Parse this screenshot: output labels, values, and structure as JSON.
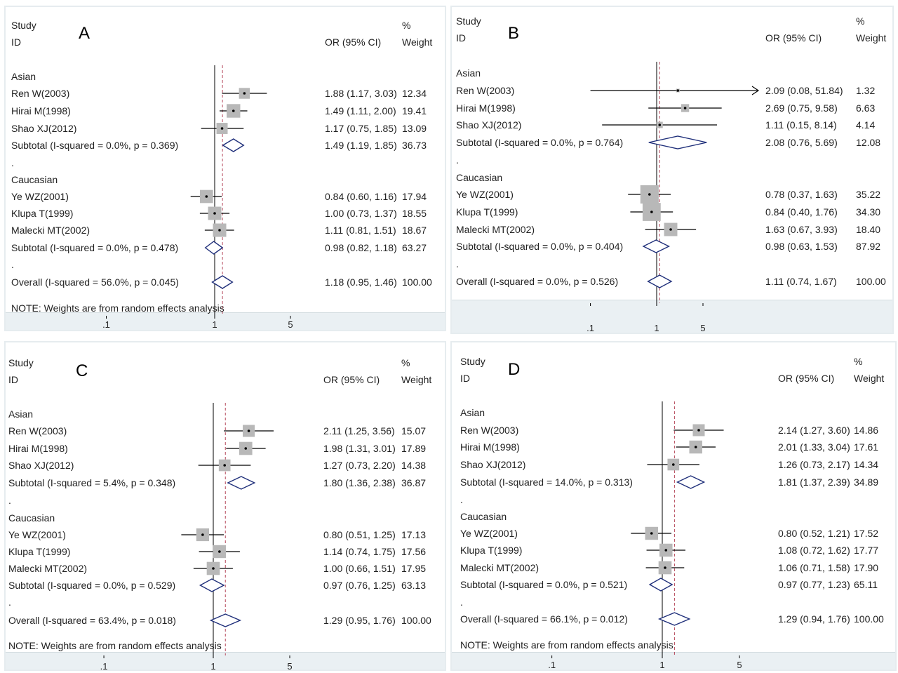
{
  "chart_data": [
    {
      "type": "forest",
      "panel": "A",
      "header": {
        "study": "Study",
        "id": "ID",
        "or": "OR (95% CI)",
        "pct": "%",
        "weight": "Weight"
      },
      "x_scale": "log",
      "xlim": [
        0.1,
        5
      ],
      "x_ticks": [
        ".1",
        "1",
        "5"
      ],
      "rows": [
        {
          "kind": "group",
          "label": "Asian"
        },
        {
          "kind": "study",
          "label": "Ren W(2003)",
          "or": 1.88,
          "lo": 1.17,
          "hi": 3.03,
          "ci_text": "1.88 (1.17, 3.03)",
          "weight": "12.34"
        },
        {
          "kind": "study",
          "label": "Hirai M(1998)",
          "or": 1.49,
          "lo": 1.11,
          "hi": 2.0,
          "ci_text": "1.49 (1.11, 2.00)",
          "weight": "19.41"
        },
        {
          "kind": "study",
          "label": "Shao XJ(2012)",
          "or": 1.17,
          "lo": 0.75,
          "hi": 1.85,
          "ci_text": "1.17 (0.75, 1.85)",
          "weight": "13.09"
        },
        {
          "kind": "subtotal",
          "label": "Subtotal  (I-squared = 0.0%, p = 0.369)",
          "or": 1.49,
          "lo": 1.19,
          "hi": 1.85,
          "ci_text": "1.49 (1.19, 1.85)",
          "weight": "36.73"
        },
        {
          "kind": "dot",
          "label": "."
        },
        {
          "kind": "group",
          "label": "Caucasian"
        },
        {
          "kind": "study",
          "label": "Ye WZ(2001)",
          "or": 0.84,
          "lo": 0.6,
          "hi": 1.16,
          "ci_text": "0.84 (0.60, 1.16)",
          "weight": "17.94"
        },
        {
          "kind": "study",
          "label": "Klupa T(1999)",
          "or": 1.0,
          "lo": 0.73,
          "hi": 1.37,
          "ci_text": "1.00 (0.73, 1.37)",
          "weight": "18.55"
        },
        {
          "kind": "study",
          "label": "Malecki MT(2002)",
          "or": 1.11,
          "lo": 0.81,
          "hi": 1.51,
          "ci_text": "1.11 (0.81, 1.51)",
          "weight": "18.67"
        },
        {
          "kind": "subtotal",
          "label": "Subtotal  (I-squared = 0.0%, p = 0.478)",
          "or": 0.98,
          "lo": 0.82,
          "hi": 1.18,
          "ci_text": "0.98 (0.82, 1.18)",
          "weight": "63.27"
        },
        {
          "kind": "dot",
          "label": "."
        },
        {
          "kind": "overall",
          "label": "Overall  (I-squared = 56.0%, p = 0.045)",
          "or": 1.18,
          "lo": 0.95,
          "hi": 1.46,
          "ci_text": "1.18 (0.95, 1.46)",
          "weight": "100.00"
        }
      ],
      "note": "NOTE: Weights are from random effects analysis"
    },
    {
      "type": "forest",
      "panel": "B",
      "header": {
        "study": "Study",
        "id": "ID",
        "or": "OR (95% CI)",
        "pct": "%",
        "weight": "Weight"
      },
      "x_scale": "log",
      "xlim": [
        0.1,
        5
      ],
      "x_ticks": [
        ".1",
        "1",
        "5"
      ],
      "rows": [
        {
          "kind": "group",
          "label": "Asian"
        },
        {
          "kind": "study",
          "label": "Ren W(2003)",
          "or": 2.09,
          "lo": 0.08,
          "hi": 51.84,
          "ci_text": "2.09 (0.08, 51.84)",
          "weight": "1.32"
        },
        {
          "kind": "study",
          "label": "Hirai M(1998)",
          "or": 2.69,
          "lo": 0.75,
          "hi": 9.58,
          "ci_text": "2.69 (0.75, 9.58)",
          "weight": "6.63"
        },
        {
          "kind": "study",
          "label": "Shao XJ(2012)",
          "or": 1.11,
          "lo": 0.15,
          "hi": 8.14,
          "ci_text": "1.11 (0.15, 8.14)",
          "weight": "4.14"
        },
        {
          "kind": "subtotal",
          "label": "Subtotal  (I-squared = 0.0%, p = 0.764)",
          "or": 2.08,
          "lo": 0.76,
          "hi": 5.69,
          "ci_text": "2.08 (0.76, 5.69)",
          "weight": "12.08"
        },
        {
          "kind": "dot",
          "label": "."
        },
        {
          "kind": "group",
          "label": "Caucasian"
        },
        {
          "kind": "study",
          "label": "Ye WZ(2001)",
          "or": 0.78,
          "lo": 0.37,
          "hi": 1.63,
          "ci_text": "0.78 (0.37, 1.63)",
          "weight": "35.22"
        },
        {
          "kind": "study",
          "label": "Klupa T(1999)",
          "or": 0.84,
          "lo": 0.4,
          "hi": 1.76,
          "ci_text": "0.84 (0.40, 1.76)",
          "weight": "34.30"
        },
        {
          "kind": "study",
          "label": "Malecki MT(2002)",
          "or": 1.63,
          "lo": 0.67,
          "hi": 3.93,
          "ci_text": "1.63 (0.67, 3.93)",
          "weight": "18.40"
        },
        {
          "kind": "subtotal",
          "label": "Subtotal  (I-squared = 0.0%, p = 0.404)",
          "or": 0.98,
          "lo": 0.63,
          "hi": 1.53,
          "ci_text": "0.98 (0.63, 1.53)",
          "weight": "87.92"
        },
        {
          "kind": "dot",
          "label": "."
        },
        {
          "kind": "overall",
          "label": "Overall  (I-squared = 0.0%, p = 0.526)",
          "or": 1.11,
          "lo": 0.74,
          "hi": 1.67,
          "ci_text": "1.11 (0.74, 1.67)",
          "weight": "100.00"
        }
      ],
      "note": ""
    },
    {
      "type": "forest",
      "panel": "C",
      "header": {
        "study": "Study",
        "id": "ID",
        "or": "OR (95% CI)",
        "pct": "%",
        "weight": "Weight"
      },
      "x_scale": "log",
      "xlim": [
        0.1,
        5
      ],
      "x_ticks": [
        ".1",
        "1",
        "5"
      ],
      "rows": [
        {
          "kind": "group",
          "label": "Asian"
        },
        {
          "kind": "study",
          "label": "Ren W(2003)",
          "or": 2.11,
          "lo": 1.25,
          "hi": 3.56,
          "ci_text": "2.11 (1.25, 3.56)",
          "weight": "15.07"
        },
        {
          "kind": "study",
          "label": "Hirai M(1998)",
          "or": 1.98,
          "lo": 1.31,
          "hi": 3.01,
          "ci_text": "1.98 (1.31, 3.01)",
          "weight": "17.89"
        },
        {
          "kind": "study",
          "label": "Shao XJ(2012)",
          "or": 1.27,
          "lo": 0.73,
          "hi": 2.2,
          "ci_text": "1.27 (0.73, 2.20)",
          "weight": "14.38"
        },
        {
          "kind": "subtotal",
          "label": "Subtotal  (I-squared = 5.4%, p = 0.348)",
          "or": 1.8,
          "lo": 1.36,
          "hi": 2.38,
          "ci_text": "1.80 (1.36, 2.38)",
          "weight": "36.87"
        },
        {
          "kind": "dot",
          "label": "."
        },
        {
          "kind": "group",
          "label": "Caucasian"
        },
        {
          "kind": "study",
          "label": "Ye WZ(2001)",
          "or": 0.8,
          "lo": 0.51,
          "hi": 1.25,
          "ci_text": "0.80 (0.51, 1.25)",
          "weight": "17.13"
        },
        {
          "kind": "study",
          "label": "Klupa T(1999)",
          "or": 1.14,
          "lo": 0.74,
          "hi": 1.75,
          "ci_text": "1.14 (0.74, 1.75)",
          "weight": "17.56"
        },
        {
          "kind": "study",
          "label": "Malecki MT(2002)",
          "or": 1.0,
          "lo": 0.66,
          "hi": 1.51,
          "ci_text": "1.00 (0.66, 1.51)",
          "weight": "17.95"
        },
        {
          "kind": "subtotal",
          "label": "Subtotal  (I-squared = 0.0%, p = 0.529)",
          "or": 0.97,
          "lo": 0.76,
          "hi": 1.25,
          "ci_text": "0.97 (0.76, 1.25)",
          "weight": "63.13"
        },
        {
          "kind": "dot",
          "label": "."
        },
        {
          "kind": "overall",
          "label": "Overall  (I-squared = 63.4%, p = 0.018)",
          "or": 1.29,
          "lo": 0.95,
          "hi": 1.76,
          "ci_text": "1.29 (0.95, 1.76)",
          "weight": "100.00"
        }
      ],
      "note": "NOTE: Weights are from random effects analysis"
    },
    {
      "type": "forest",
      "panel": "D",
      "header": {
        "study": "Study",
        "id": "ID",
        "or": "OR (95% CI)",
        "pct": "%",
        "weight": "Weight"
      },
      "x_scale": "log",
      "xlim": [
        0.1,
        5
      ],
      "x_ticks": [
        ".1",
        "1",
        "5"
      ],
      "rows": [
        {
          "kind": "group",
          "label": "Asian"
        },
        {
          "kind": "study",
          "label": "Ren W(2003)",
          "or": 2.14,
          "lo": 1.27,
          "hi": 3.6,
          "ci_text": "2.14 (1.27, 3.60)",
          "weight": "14.86"
        },
        {
          "kind": "study",
          "label": "Hirai M(1998)",
          "or": 2.01,
          "lo": 1.33,
          "hi": 3.04,
          "ci_text": "2.01 (1.33, 3.04)",
          "weight": "17.61"
        },
        {
          "kind": "study",
          "label": "Shao XJ(2012)",
          "or": 1.26,
          "lo": 0.73,
          "hi": 2.17,
          "ci_text": "1.26 (0.73, 2.17)",
          "weight": "14.34"
        },
        {
          "kind": "subtotal",
          "label": "Subtotal  (I-squared = 14.0%, p = 0.313)",
          "or": 1.81,
          "lo": 1.37,
          "hi": 2.39,
          "ci_text": "1.81 (1.37, 2.39)",
          "weight": "34.89"
        },
        {
          "kind": "dot",
          "label": "."
        },
        {
          "kind": "group",
          "label": "Caucasian"
        },
        {
          "kind": "study",
          "label": "Ye WZ(2001)",
          "or": 0.8,
          "lo": 0.52,
          "hi": 1.21,
          "ci_text": "0.80 (0.52, 1.21)",
          "weight": "17.52"
        },
        {
          "kind": "study",
          "label": "Klupa T(1999)",
          "or": 1.08,
          "lo": 0.72,
          "hi": 1.62,
          "ci_text": "1.08 (0.72, 1.62)",
          "weight": "17.77"
        },
        {
          "kind": "study",
          "label": "Malecki MT(2002)",
          "or": 1.06,
          "lo": 0.71,
          "hi": 1.58,
          "ci_text": "1.06 (0.71, 1.58)",
          "weight": "17.90"
        },
        {
          "kind": "subtotal",
          "label": "Subtotal  (I-squared = 0.0%, p = 0.521)",
          "or": 0.97,
          "lo": 0.77,
          "hi": 1.23,
          "ci_text": "0.97 (0.77, 1.23)",
          "weight": "65.11"
        },
        {
          "kind": "dot",
          "label": "."
        },
        {
          "kind": "overall",
          "label": "Overall  (I-squared = 66.1%, p = 0.012)",
          "or": 1.29,
          "lo": 0.94,
          "hi": 1.76,
          "ci_text": "1.29 (0.94, 1.76)",
          "weight": "100.00"
        }
      ],
      "note": "NOTE: Weights are from random effects analysis"
    }
  ],
  "colors": {
    "diamond": "#1f2f7a",
    "ref_dashed": "#b5485b",
    "marker_box": "#b8b8b8",
    "panel_border": "#e6ecef",
    "axis_strip": "#eaf0f3"
  }
}
